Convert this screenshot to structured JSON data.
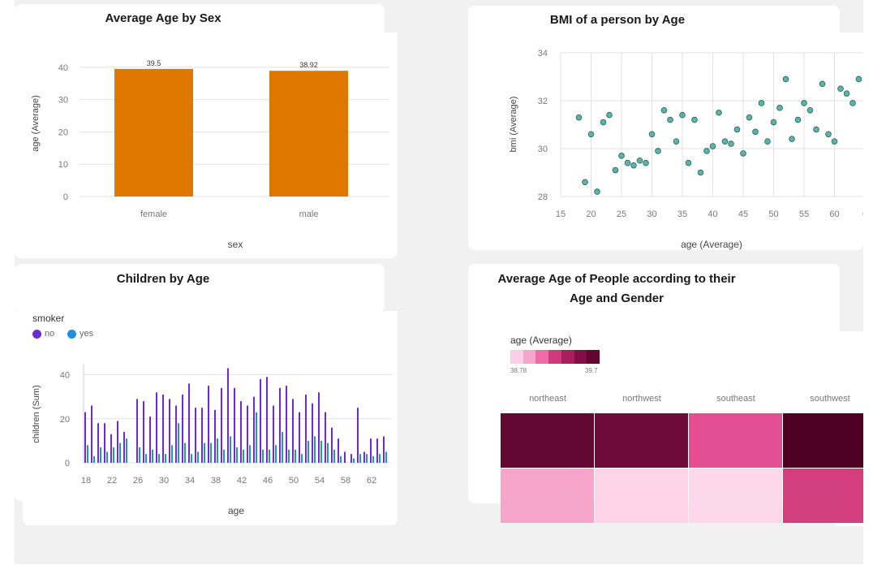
{
  "colors": {
    "bar_orange": "#e07800",
    "scatter_fill": "#5cb3a8",
    "scatter_stroke": "#2d5f58",
    "smoker_no": "#6a2bd1",
    "smoker_yes": "#1f8fe0",
    "grid": "#e2e2e2",
    "axis_text": "#777777"
  },
  "chart_data": [
    {
      "id": "age_by_sex",
      "type": "bar",
      "title": "Average Age by Sex",
      "xlabel": "sex",
      "ylabel": "age (Average)",
      "categories": [
        "female",
        "male"
      ],
      "values": [
        39.5,
        38.92
      ],
      "data_labels": [
        "39.5",
        "38.92"
      ],
      "yticks": [
        "0",
        "10",
        "20",
        "30",
        "40"
      ],
      "ylim": [
        0,
        45
      ],
      "grid": true
    },
    {
      "id": "bmi_by_age",
      "type": "scatter",
      "title": "BMI of a person by Age",
      "xlabel": "age (Average)",
      "ylabel": "bmi (Average)",
      "xlim": [
        15,
        65
      ],
      "ylim": [
        28,
        34
      ],
      "xticks": [
        "15",
        "20",
        "25",
        "30",
        "35",
        "40",
        "45",
        "50",
        "55",
        "60",
        "6"
      ],
      "yticks": [
        "28",
        "30",
        "32",
        "34"
      ],
      "grid": true,
      "x": [
        18,
        19,
        20,
        21,
        22,
        23,
        24,
        25,
        26,
        27,
        28,
        29,
        30,
        31,
        32,
        33,
        34,
        35,
        36,
        37,
        38,
        39,
        40,
        41,
        42,
        43,
        44,
        45,
        46,
        47,
        48,
        49,
        50,
        51,
        52,
        53,
        54,
        55,
        56,
        57,
        58,
        59,
        60,
        61,
        62,
        63,
        64
      ],
      "y": [
        31.3,
        28.6,
        30.6,
        28.2,
        31.1,
        31.4,
        29.1,
        29.7,
        29.4,
        29.3,
        29.5,
        29.4,
        30.6,
        29.9,
        31.6,
        31.2,
        30.3,
        31.4,
        29.4,
        31.2,
        29.0,
        29.9,
        30.1,
        31.5,
        30.3,
        30.2,
        30.8,
        29.8,
        31.3,
        30.7,
        31.9,
        30.3,
        31.1,
        31.7,
        32.9,
        30.4,
        31.2,
        31.9,
        31.6,
        30.8,
        32.7,
        30.6,
        30.3,
        32.5,
        32.3,
        31.9,
        32.9
      ]
    },
    {
      "id": "children_by_age",
      "type": "bar",
      "title": "Children by Age",
      "xlabel": "age",
      "ylabel": "children (Sum)",
      "legend_title": "smoker",
      "legend_position": "top-left",
      "ylim": [
        0,
        45
      ],
      "yticks": [
        "0",
        "20",
        "40"
      ],
      "xticks": [
        "18",
        "22",
        "26",
        "30",
        "34",
        "38",
        "42",
        "46",
        "50",
        "54",
        "58",
        "62"
      ],
      "grid": true,
      "categories": [
        18,
        19,
        20,
        21,
        22,
        23,
        24,
        25,
        26,
        27,
        28,
        29,
        30,
        31,
        32,
        33,
        34,
        35,
        36,
        37,
        38,
        39,
        40,
        41,
        42,
        43,
        44,
        45,
        46,
        47,
        48,
        49,
        50,
        51,
        52,
        53,
        54,
        55,
        56,
        57,
        58,
        59,
        60,
        61,
        62,
        63,
        64
      ],
      "series": [
        {
          "name": "no",
          "values": [
            23,
            26,
            18,
            18,
            13,
            19,
            14,
            0,
            29,
            28,
            21,
            32,
            31,
            29,
            26,
            31,
            36,
            25,
            25,
            35,
            24,
            34,
            43,
            34,
            28,
            26,
            30,
            38,
            39,
            26,
            34,
            35,
            29,
            23,
            31,
            27,
            32,
            23,
            16,
            11,
            5,
            4,
            25,
            5,
            11,
            11,
            12
          ]
        },
        {
          "name": "yes",
          "values": [
            8,
            3,
            7,
            5,
            7,
            9,
            11,
            0,
            7,
            4,
            6,
            4,
            4,
            8,
            18,
            9,
            4,
            5,
            9,
            9,
            11,
            6,
            12,
            7,
            6,
            8,
            23,
            6,
            6,
            8,
            14,
            6,
            6,
            4,
            10,
            12,
            10,
            9,
            6,
            3,
            0,
            2,
            4,
            4,
            3,
            4,
            5
          ]
        }
      ]
    },
    {
      "id": "age_heatmap",
      "type": "heatmap",
      "title": "Average Age of People according to their Age and Gender",
      "legend_title": "age (Average)",
      "legend_min": "38.78",
      "legend_max": "39.7",
      "legend_colors": [
        "#fbd0e6",
        "#f6a6cc",
        "#ee6aa8",
        "#cf3a7e",
        "#a81f5c",
        "#820e45",
        "#62062f"
      ],
      "columns": [
        "northeast",
        "northwest",
        "southeast",
        "southwest"
      ],
      "rows": 2,
      "values": [
        [
          39.58,
          39.48,
          38.98,
          39.7
        ],
        [
          38.93,
          38.8,
          38.78,
          39.1
        ]
      ],
      "cell_colors": [
        [
          "#630733",
          "#6e0b3a",
          "#e34f92",
          "#4d0023"
        ],
        [
          "#f8a5cb",
          "#fdd4e8",
          "#fdd8ea",
          "#d33e7e"
        ]
      ]
    }
  ]
}
